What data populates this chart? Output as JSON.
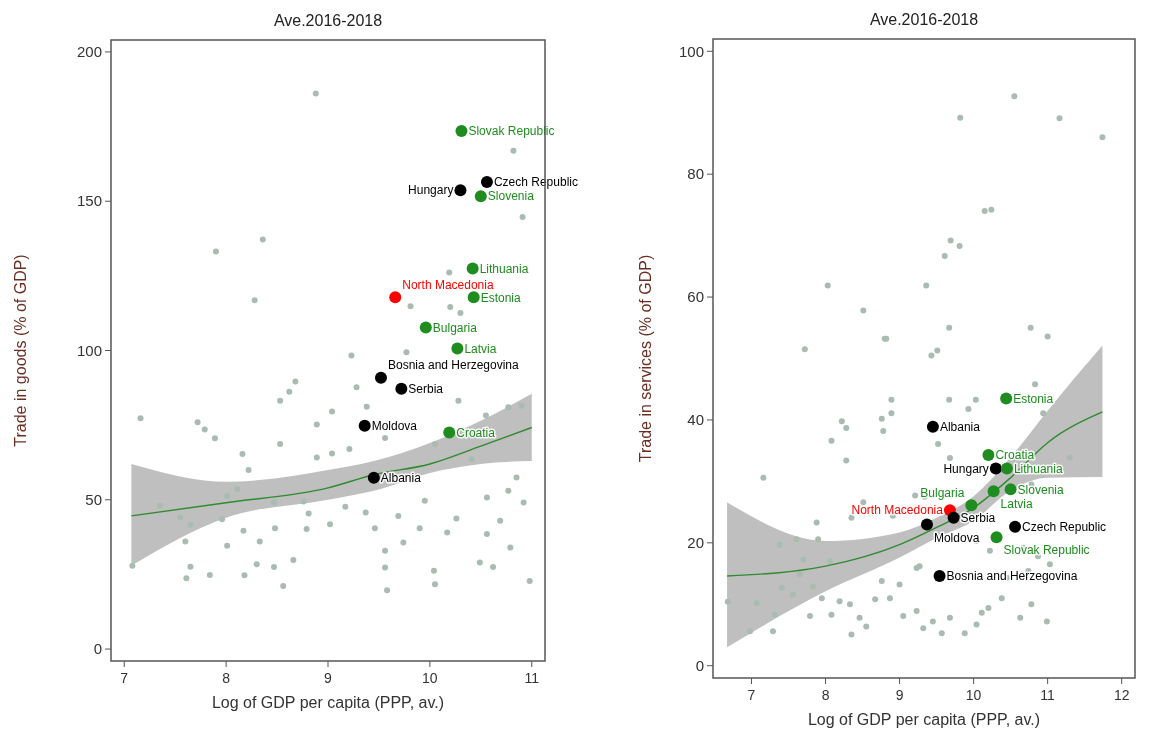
{
  "chart_data": [
    {
      "type": "scatter",
      "title": "Ave.2016-2018",
      "xlabel": "Log of GDP per capita (PPP, av.)",
      "ylabel": "Trade in goods (% of GDP)",
      "xlim": [
        6.87,
        11.13
      ],
      "ylim": [
        -4,
        204
      ],
      "xticks": [
        7,
        8,
        9,
        10,
        11
      ],
      "yticks": [
        0,
        50,
        100,
        150,
        200
      ],
      "marker": "circle",
      "series": [
        {
          "type": "scatter",
          "color": "#a9bcb1",
          "x": [
            7.16,
            7.72,
            7.79,
            7.89,
            8.16,
            8.22,
            8.53,
            8.62,
            8.68,
            8.53,
            8.89,
            9.04,
            8.89,
            9.04,
            9.21,
            9.23,
            9.28,
            9.38,
            9.56,
            9.77,
            10.28,
            10.55,
            10.77,
            10.9,
            10.05,
            10.41,
            10.85,
            10.77,
            10.56,
            10.92,
            10.69,
            10.56,
            10.79,
            10.49,
            10.62,
            10.98,
            10.04,
            10.05,
            10.17,
            10.26,
            9.95,
            9.9,
            9.74,
            9.69,
            9.56,
            9.56,
            9.58,
            9.46,
            9.37,
            9.17,
            9.02,
            8.79,
            8.81,
            8.47,
            8.33,
            8.48,
            8.17,
            8.01,
            8.3,
            8.47,
            8.66,
            8.56,
            8.18,
            7.84,
            7.61,
            7.65,
            7.65,
            7.55,
            7.6,
            7.35,
            8.01,
            8.11,
            7.08,
            7.96,
            8.76,
            8.88,
            10.82,
            10.91,
            8.36,
            7.9,
            8.28,
            9.81,
            10.2,
            10.3,
            10.19
          ],
          "values": [
            77.3,
            76,
            73.5,
            70.6,
            65.3,
            60,
            83.2,
            86.2,
            89.6,
            68.7,
            75.2,
            79.6,
            64.2,
            65.5,
            67,
            98.3,
            87.7,
            81.2,
            70.7,
            99.4,
            83.2,
            78.2,
            81,
            81.5,
            68.7,
            63.6,
            57.5,
            53,
            50.8,
            49.1,
            43,
            38.5,
            34,
            29,
            27.5,
            22.8,
            26.2,
            21.7,
            39,
            43.7,
            49.7,
            40.5,
            35.7,
            44.6,
            32.9,
            27.3,
            19.7,
            40.5,
            45.7,
            47.7,
            41.8,
            40.2,
            45.4,
            49.1,
            36,
            40.5,
            39.6,
            34.6,
            28.4,
            27.5,
            29.8,
            21.1,
            24.7,
            24.8,
            23.7,
            27.6,
            41.6,
            44.1,
            36,
            48,
            51.3,
            53.6,
            27.9,
            43.5,
            49.4,
            186.1,
            166.9,
            144.7,
            137.2,
            133.2,
            116.8,
            114.8,
            114.6,
            112.6,
            126.1
          ]
        },
        {
          "type": "line",
          "marker": "none",
          "color": "#2e8b2e",
          "x": [
            7.07,
            8,
            9,
            9.45,
            10,
            10.5,
            11
          ],
          "values": [
            44.6,
            49,
            54,
            58.4,
            62,
            68,
            74.2
          ],
          "lower": [
            28,
            44,
            50,
            53,
            59,
            62,
            63
          ],
          "upper": [
            62,
            56,
            60,
            63,
            69,
            76.5,
            85.5
          ]
        },
        {
          "type": "scatter",
          "name": "Slovak Republic",
          "color": "#1e8c1e",
          "x": [
            10.31
          ],
          "values": [
            173.5
          ]
        },
        {
          "type": "scatter",
          "name": "Czech Republic",
          "color": "#000000",
          "x": [
            10.56
          ],
          "values": [
            156.4
          ]
        },
        {
          "type": "scatter",
          "name": "Hungary",
          "color": "#000000",
          "x": [
            10.3
          ],
          "values": [
            153.7
          ]
        },
        {
          "type": "scatter",
          "name": "Slovenia",
          "color": "#1e8c1e",
          "x": [
            10.5
          ],
          "values": [
            151.7
          ]
        },
        {
          "type": "scatter",
          "name": "Lithuania",
          "color": "#1e8c1e",
          "x": [
            10.42
          ],
          "values": [
            127.5
          ]
        },
        {
          "type": "scatter",
          "name": "North Macedonia",
          "color": "#ff0000",
          "x": [
            9.66
          ],
          "values": [
            117.8
          ]
        },
        {
          "type": "scatter",
          "name": "Estonia",
          "color": "#1e8c1e",
          "x": [
            10.43
          ],
          "values": [
            117.8
          ]
        },
        {
          "type": "scatter",
          "name": "Bulgaria",
          "color": "#1e8c1e",
          "x": [
            9.96
          ],
          "values": [
            107.7
          ]
        },
        {
          "type": "scatter",
          "name": "Latvia",
          "color": "#1e8c1e",
          "x": [
            10.27
          ],
          "values": [
            100.7
          ]
        },
        {
          "type": "scatter",
          "name": "Bosnia and Herzegovina",
          "color": "#000000",
          "x": [
            9.52
          ],
          "values": [
            90.9
          ]
        },
        {
          "type": "scatter",
          "name": "Serbia",
          "color": "#000000",
          "x": [
            9.72
          ],
          "values": [
            87.2
          ]
        },
        {
          "type": "scatter",
          "name": "Moldova",
          "color": "#000000",
          "x": [
            9.36
          ],
          "values": [
            74.8
          ]
        },
        {
          "type": "scatter",
          "name": "Croatia",
          "color": "#1e8c1e",
          "x": [
            10.19
          ],
          "values": [
            72.5
          ]
        },
        {
          "name": "Albania",
          "color": "#000000",
          "x": [
            9.45
          ],
          "values": [
            57.4
          ]
        }
      ]
    },
    {
      "type": "scatter",
      "title": "Ave.2016-2018",
      "xlabel": "Log of GDP per capita (PPP, av.)",
      "ylabel": "Trade in services (% of GDP)",
      "xlim": [
        6.48,
        12.18
      ],
      "ylim": [
        -2,
        102
      ],
      "xticks": [
        7,
        8,
        9,
        10,
        11,
        12
      ],
      "yticks": [
        0,
        20,
        40,
        60,
        80,
        100
      ],
      "marker": "circle",
      "series": [
        {
          "type": "scatter",
          "color": "#a9bcb1",
          "x": [
            7.72,
            8.82,
            9.43,
            9.51,
            10.83,
            10.94,
            8.89,
            8.89,
            10.03,
            9.67,
            9.93,
            8.22,
            8.28,
            8.08,
            8.28,
            7.16,
            8.76,
            8.78,
            9.52,
            9.68,
            11.3,
            9.21,
            9.34,
            10.78,
            8.51,
            8.35,
            7.88,
            8.91,
            7.38,
            7.61,
            7.9,
            8.06,
            7.7,
            7.65,
            7.41,
            7.07,
            6.68,
            6.98,
            7.29,
            7.32,
            7.56,
            7.83,
            7.79,
            7.95,
            8.08,
            8.19,
            8.33,
            8.46,
            8.35,
            8.55,
            8.67,
            8.76,
            8.87,
            9.05,
            9,
            9.23,
            9.32,
            9.45,
            9.57,
            9.68,
            9.88,
            10.04,
            10.11,
            10.2,
            10.38,
            10.63,
            10.78,
            10.99,
            10.22,
            10.67,
            10.87,
            10.04,
            9.77,
            9.23,
            9.27,
            10.45,
            10.74,
            11.03,
            10.55,
            9.82,
            11.16,
            11.74,
            10.15,
            10.24,
            9.69,
            9.81,
            9.61,
            8.03,
            9.36,
            8.51,
            9.67,
            8.8,
            10.77,
            11
          ],
          "values": [
            51.5,
            53.2,
            50.5,
            51.3,
            45.8,
            41.1,
            43.3,
            41.1,
            43.3,
            43.3,
            41.8,
            39.8,
            38.7,
            36.6,
            33.4,
            30.6,
            40.2,
            38.2,
            36.1,
            33.8,
            33.9,
            27.7,
            27.5,
            29.5,
            26.6,
            24.1,
            23.3,
            24.4,
            19.7,
            20.6,
            20.6,
            17,
            17.3,
            14.9,
            12.7,
            10.2,
            10.4,
            5.6,
            5.6,
            8.3,
            11.6,
            12.9,
            8.1,
            11,
            8.3,
            10.5,
            10,
            7.8,
            5.1,
            6.4,
            10.8,
            13.8,
            11,
            8.1,
            13.2,
            8.9,
            6.1,
            7.2,
            5.3,
            7.8,
            5.3,
            6.7,
            8.6,
            9.4,
            11,
            7.8,
            10,
            7.2,
            18.7,
            19.2,
            17.8,
            20.3,
            20.6,
            15.9,
            16.2,
            14.3,
            15.4,
            16.5,
            92.7,
            89.2,
            89.1,
            86,
            74,
            74.2,
            69.2,
            68.3,
            66.7,
            61.9,
            61.9,
            57.8,
            55,
            53.2,
            55,
            53.6
          ]
        },
        {
          "type": "line",
          "marker": "none",
          "color": "#2e8b2e",
          "x": [
            6.67,
            8,
            9,
            9.5,
            10,
            10.5,
            11,
            11.74
          ],
          "values": [
            14.6,
            16.2,
            19.7,
            22.5,
            25.7,
            30.6,
            36.3,
            41.3
          ],
          "lower": [
            3,
            12.1,
            17.6,
            20.8,
            23.6,
            28.5,
            30.6,
            30.7
          ],
          "upper": [
            26.6,
            20.3,
            21.7,
            24.1,
            27.6,
            33.9,
            41.5,
            52.1
          ]
        },
        {
          "type": "scatter",
          "name": "Estonia",
          "color": "#1e8c1e",
          "x": [
            10.44
          ],
          "values": [
            43.5
          ]
        },
        {
          "type": "scatter",
          "name": "Albania",
          "color": "#000000",
          "x": [
            9.45
          ],
          "values": [
            38.9
          ]
        },
        {
          "type": "scatter",
          "name": "Croatia",
          "color": "#1e8c1e",
          "x": [
            10.2
          ],
          "values": [
            34.3
          ]
        },
        {
          "type": "scatter",
          "name": "Hungary",
          "color": "#000000",
          "x": [
            10.3
          ],
          "values": [
            32.1
          ]
        },
        {
          "type": "scatter",
          "name": "Lithuania",
          "color": "#1e8c1e",
          "x": [
            10.45
          ],
          "values": [
            32.1
          ]
        },
        {
          "type": "scatter",
          "name": "Slovenia",
          "color": "#1e8c1e",
          "x": [
            10.5
          ],
          "values": [
            28.7
          ]
        },
        {
          "type": "scatter",
          "name": "Latvia",
          "color": "#1e8c1e",
          "x": [
            10.27
          ],
          "values": [
            28.4
          ]
        },
        {
          "type": "scatter",
          "name": "Bulgaria",
          "color": "#1e8c1e",
          "x": [
            9.97
          ],
          "values": [
            26.1
          ]
        },
        {
          "type": "scatter",
          "name": "North Macedonia",
          "color": "#ff0000",
          "x": [
            9.68
          ],
          "values": [
            25.3
          ]
        },
        {
          "type": "scatter",
          "name": "Serbia",
          "color": "#000000",
          "x": [
            9.73
          ],
          "values": [
            24.1
          ]
        },
        {
          "type": "scatter",
          "name": "Moldova",
          "color": "#000000",
          "x": [
            9.37
          ],
          "values": [
            23
          ]
        },
        {
          "type": "scatter",
          "name": "Czech Republic",
          "color": "#000000",
          "x": [
            10.56
          ],
          "values": [
            22.6
          ]
        },
        {
          "type": "scatter",
          "name": "Slovak Republic",
          "color": "#1e8c1e",
          "x": [
            10.31
          ],
          "values": [
            20.9
          ]
        },
        {
          "name": "Bosnia and Herzegovina",
          "color": "#000000",
          "x": [
            9.54
          ],
          "values": [
            14.6
          ]
        }
      ]
    }
  ]
}
